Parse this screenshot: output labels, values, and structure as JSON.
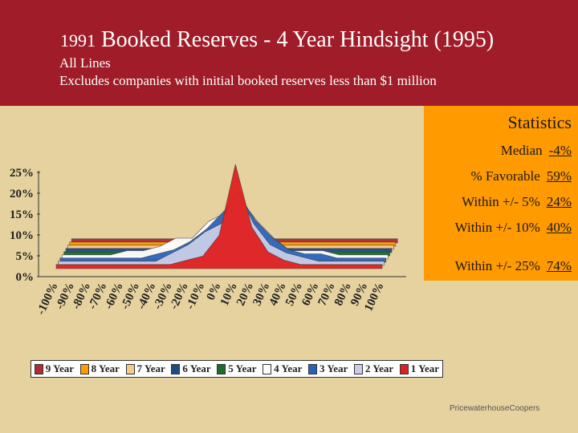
{
  "header": {
    "title_year": "1991",
    "title_main": "Booked Reserves - 4 Year Hindsight (1995)",
    "subtitle1": "All Lines",
    "subtitle2": "Excludes companies with initial booked reserves less than $1 million"
  },
  "stats": {
    "title": "Statistics",
    "rows": [
      {
        "label": "Median",
        "value": "-4%"
      },
      {
        "label": "% Favorable",
        "value": "59%"
      },
      {
        "label": "Within +/- 5%",
        "value": "24%"
      },
      {
        "label": "Within +/- 10%",
        "value": "40%"
      },
      {
        "label": "Within +/- 25%",
        "value": "74%"
      }
    ]
  },
  "footer": "PricewaterhouseCoopers",
  "colors": {
    "header_bg": "#a01c28",
    "page_bg": "#e5d29f",
    "stats_bg": "#ff9a00"
  },
  "chart_data": {
    "type": "area",
    "style": "3d-stacked-ribbons",
    "x": [
      "-100%",
      "-90%",
      "-80%",
      "-70%",
      "-60%",
      "-50%",
      "-40%",
      "-30%",
      "-20%",
      "-10%",
      "0%",
      "10%",
      "20%",
      "30%",
      "40%",
      "50%",
      "60%",
      "70%",
      "80%",
      "90%",
      "100%"
    ],
    "ylim": [
      0,
      0.25
    ],
    "yticks": [
      "0%",
      "5%",
      "10%",
      "15%",
      "20%",
      "25%"
    ],
    "grid": false,
    "legend_position": "bottom",
    "series": [
      {
        "name": "9 Year",
        "color": "#b02a37",
        "values": [
          0.01,
          0.01,
          0.01,
          0.01,
          0.01,
          0.01,
          0.01,
          0.01,
          0.01,
          0.01,
          0.01,
          0.01,
          0.01,
          0.01,
          0.01,
          0.01,
          0.01,
          0.01,
          0.01,
          0.01,
          0.01
        ]
      },
      {
        "name": "8 Year",
        "color": "#ff9a00",
        "values": [
          0.01,
          0.01,
          0.01,
          0.01,
          0.01,
          0.01,
          0.01,
          0.01,
          0.01,
          0.01,
          0.01,
          0.01,
          0.01,
          0.01,
          0.01,
          0.01,
          0.01,
          0.01,
          0.01,
          0.01,
          0.01
        ]
      },
      {
        "name": "7 Year",
        "color": "#f7c98a",
        "values": [
          0.01,
          0.01,
          0.01,
          0.01,
          0.01,
          0.01,
          0.01,
          0.01,
          0.01,
          0.01,
          0.01,
          0.01,
          0.01,
          0.01,
          0.01,
          0.01,
          0.01,
          0.01,
          0.01,
          0.01,
          0.01
        ]
      },
      {
        "name": "6 Year",
        "color": "#1f4a8a",
        "values": [
          0.01,
          0.01,
          0.01,
          0.01,
          0.01,
          0.01,
          0.01,
          0.01,
          0.01,
          0.01,
          0.01,
          0.01,
          0.01,
          0.01,
          0.01,
          0.01,
          0.01,
          0.01,
          0.01,
          0.01,
          0.01
        ]
      },
      {
        "name": "5 Year",
        "color": "#1e6b2e",
        "values": [
          0.01,
          0.01,
          0.01,
          0.01,
          0.01,
          0.01,
          0.01,
          0.01,
          0.01,
          0.01,
          0.01,
          0.01,
          0.01,
          0.01,
          0.01,
          0.01,
          0.01,
          0.01,
          0.01,
          0.01,
          0.01
        ]
      },
      {
        "name": "4 Year",
        "color": "#ffffff",
        "values": [
          0.01,
          0.01,
          0.01,
          0.01,
          0.02,
          0.02,
          0.03,
          0.05,
          0.05,
          0.09,
          0.11,
          0.14,
          0.09,
          0.05,
          0.02,
          0.02,
          0.02,
          0.01,
          0.01,
          0.01,
          0.01
        ]
      },
      {
        "name": "3 Year",
        "color": "#2a62b8",
        "values": [
          0.01,
          0.01,
          0.01,
          0.01,
          0.01,
          0.01,
          0.02,
          0.03,
          0.05,
          0.08,
          0.12,
          0.16,
          0.1,
          0.06,
          0.03,
          0.02,
          0.02,
          0.01,
          0.01,
          0.01,
          0.01
        ]
      },
      {
        "name": "2 Year",
        "color": "#c9cde8",
        "values": [
          0.01,
          0.01,
          0.01,
          0.01,
          0.01,
          0.01,
          0.01,
          0.03,
          0.05,
          0.08,
          0.1,
          0.18,
          0.1,
          0.05,
          0.03,
          0.02,
          0.01,
          0.01,
          0.01,
          0.01,
          0.01
        ]
      },
      {
        "name": "1 Year",
        "color": "#e02020",
        "values": [
          0.01,
          0.01,
          0.01,
          0.01,
          0.01,
          0.01,
          0.01,
          0.01,
          0.02,
          0.03,
          0.08,
          0.25,
          0.1,
          0.04,
          0.02,
          0.01,
          0.01,
          0.01,
          0.01,
          0.01,
          0.01
        ]
      }
    ]
  }
}
